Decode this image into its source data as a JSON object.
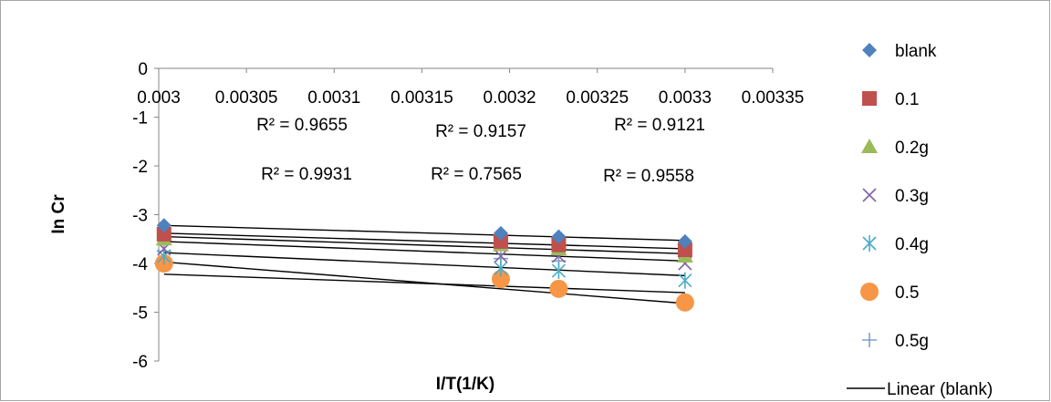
{
  "chart_data": {
    "type": "scatter",
    "xlabel": "I/T(1/K)",
    "ylabel": "In Cr",
    "xlim": [
      0.003,
      0.00335
    ],
    "ylim": [
      -6,
      0
    ],
    "x_ticks": [
      "0.003",
      "0.00305",
      "0.0031",
      "0.00315",
      "0.0032",
      "0.00325",
      "0.0033",
      "0.00335"
    ],
    "y_ticks": [
      "0",
      "-1",
      "-2",
      "-3",
      "-4",
      "-5",
      "-6"
    ],
    "x": [
      0.003003,
      0.003195,
      0.003228,
      0.0033
    ],
    "series": [
      {
        "name": "blank",
        "marker": "diamond",
        "color": "#4f81bd",
        "values": [
          -3.22,
          -3.38,
          -3.45,
          -3.55
        ]
      },
      {
        "name": "0.1",
        "marker": "square",
        "color": "#c0504d",
        "values": [
          -3.4,
          -3.55,
          -3.62,
          -3.72
        ]
      },
      {
        "name": "0.2g",
        "marker": "triangle",
        "color": "#9bbb59",
        "values": [
          -3.5,
          -3.62,
          -3.7,
          -3.85
        ]
      },
      {
        "name": "0.3g",
        "marker": "x",
        "color": "#8064a2",
        "values": [
          -3.7,
          -3.85,
          -3.85,
          -4.0
        ]
      },
      {
        "name": "0.4g",
        "marker": "star",
        "color": "#4bacc6",
        "values": [
          -3.85,
          -4.1,
          -4.15,
          -4.35
        ]
      },
      {
        "name": "0.5",
        "marker": "circle",
        "color": "#f79646",
        "values": [
          -4.0,
          -4.32,
          -4.52,
          -4.8
        ]
      },
      {
        "name": "0.5g",
        "marker": "plus",
        "color": "#7f9fcf",
        "values": [
          -3.75,
          -3.9,
          -3.95,
          -4.8
        ]
      }
    ],
    "trendlines": [
      {
        "from": [
          0.003003,
          -3.22
        ],
        "to": [
          0.0033,
          -3.53
        ]
      },
      {
        "from": [
          0.003003,
          -3.38
        ],
        "to": [
          0.0033,
          -3.7
        ]
      },
      {
        "from": [
          0.003003,
          -3.45
        ],
        "to": [
          0.0033,
          -3.8
        ]
      },
      {
        "from": [
          0.003003,
          -3.55
        ],
        "to": [
          0.0033,
          -3.95
        ]
      },
      {
        "from": [
          0.003003,
          -3.78
        ],
        "to": [
          0.0033,
          -4.25
        ]
      },
      {
        "from": [
          0.003003,
          -3.97
        ],
        "to": [
          0.0033,
          -4.82
        ]
      },
      {
        "from": [
          0.003003,
          -4.22
        ],
        "to": [
          0.0033,
          -4.6
        ]
      }
    ],
    "r_squared_labels": [
      "R² = 0.9655",
      "R² = 0.9157",
      "R² = 0.9121",
      "R² = 0.9931",
      "R² = 0.7565",
      "R² = 0.9558"
    ],
    "legend_position": "right",
    "legend_extra": "Linear (blank)",
    "grid": false
  }
}
